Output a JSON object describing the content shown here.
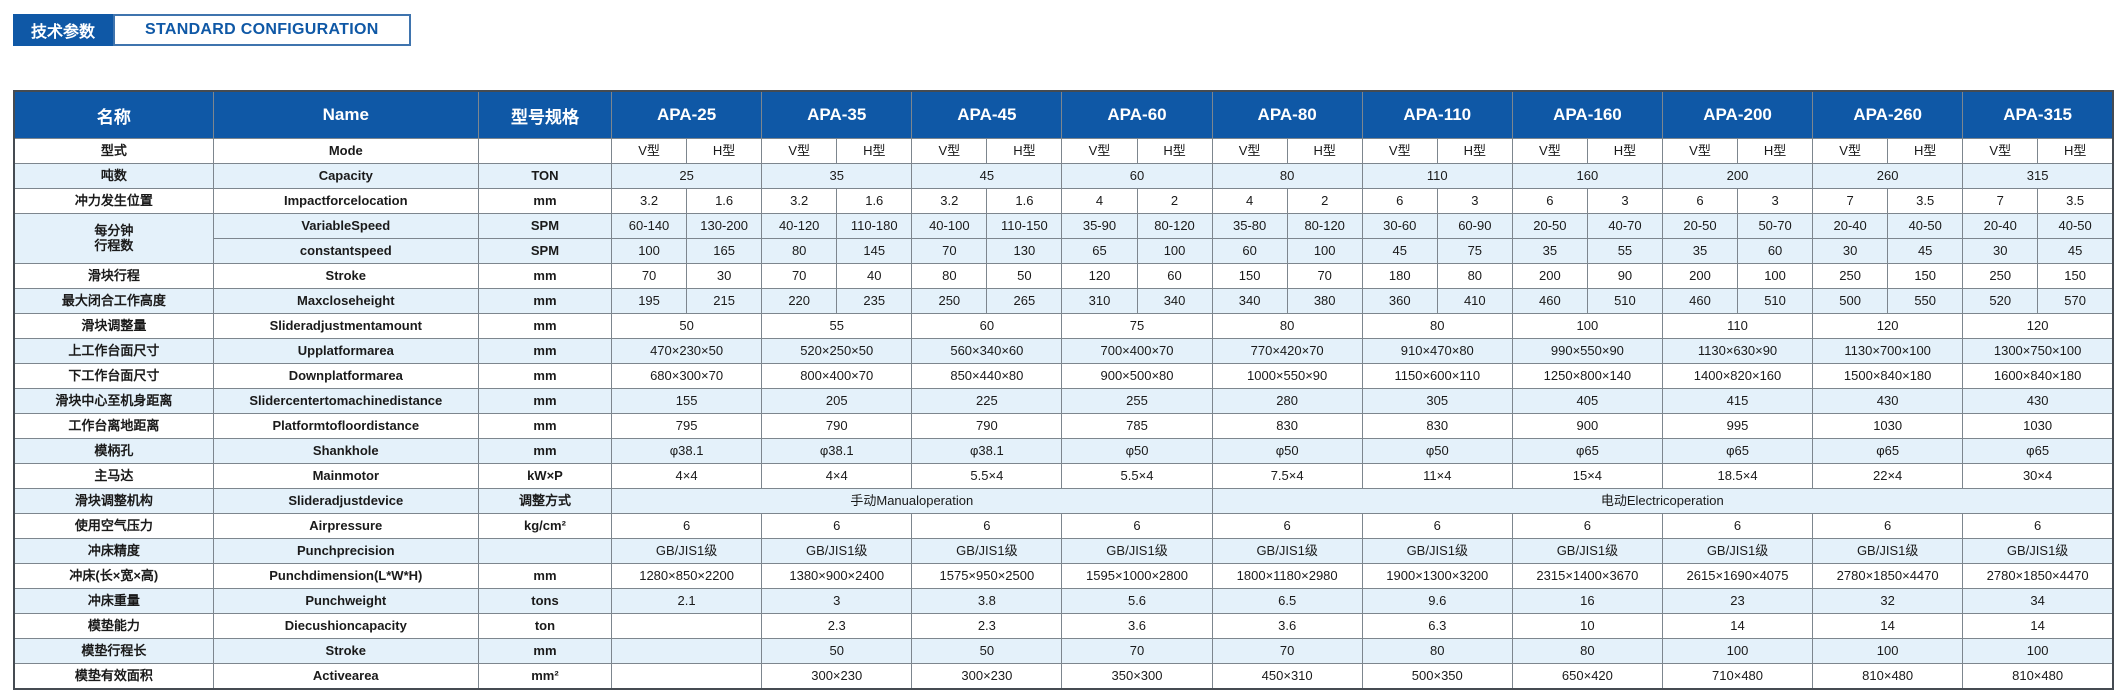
{
  "page": {
    "badge_cn": "技术参数",
    "badge_en": "STANDARD CONFIGURATION"
  },
  "colors": {
    "header_blue": "#0F58A6",
    "row_alt": "#E4F1FA",
    "border_gray": "#7D868E",
    "badge_text_blue": "#0F58A6"
  },
  "table": {
    "header": {
      "name_cn": "名称",
      "name_en": "Name",
      "spec": "型号规格",
      "models": [
        "APA-25",
        "APA-35",
        "APA-45",
        "APA-60",
        "APA-80",
        "APA-110",
        "APA-160",
        "APA-200",
        "APA-260",
        "APA-315"
      ]
    },
    "rows": [
      {
        "name_cn": "型式",
        "name_en": "Mode",
        "unit": "",
        "merged": false,
        "values": [
          "V型",
          "H型",
          "V型",
          "H型",
          "V型",
          "H型",
          "V型",
          "H型",
          "V型",
          "H型",
          "V型",
          "H型",
          "V型",
          "H型",
          "V型",
          "H型",
          "V型",
          "H型",
          "V型",
          "H型"
        ]
      },
      {
        "name_cn": "吨数",
        "name_en": "Capacity",
        "unit": "TON",
        "merged": true,
        "values": [
          "25",
          "35",
          "45",
          "60",
          "80",
          "110",
          "160",
          "200",
          "260",
          "315"
        ]
      },
      {
        "name_cn": "冲力发生位置",
        "name_en": "Impactforcelocation",
        "unit": "mm",
        "merged": false,
        "values": [
          "3.2",
          "1.6",
          "3.2",
          "1.6",
          "3.2",
          "1.6",
          "4",
          "2",
          "4",
          "2",
          "6",
          "3",
          "6",
          "3",
          "6",
          "3",
          "7",
          "3.5",
          "7",
          "3.5"
        ]
      },
      {
        "name_cn_lines": [
          "每分钟",
          "行程数"
        ],
        "sub_rows": [
          {
            "name_en": "VariableSpeed",
            "unit": "SPM",
            "merged": false,
            "values": [
              "60-140",
              "130-200",
              "40-120",
              "110-180",
              "40-100",
              "110-150",
              "35-90",
              "80-120",
              "35-80",
              "80-120",
              "30-60",
              "60-90",
              "20-50",
              "40-70",
              "20-50",
              "50-70",
              "20-40",
              "40-50",
              "20-40",
              "40-50"
            ]
          },
          {
            "name_en": "constantspeed",
            "unit": "SPM",
            "merged": false,
            "values": [
              "100",
              "165",
              "80",
              "145",
              "70",
              "130",
              "65",
              "100",
              "60",
              "100",
              "45",
              "75",
              "35",
              "55",
              "35",
              "60",
              "30",
              "45",
              "30",
              "45"
            ]
          }
        ]
      },
      {
        "name_cn": "滑块行程",
        "name_en": "Stroke",
        "unit": "mm",
        "merged": false,
        "values": [
          "70",
          "30",
          "70",
          "40",
          "80",
          "50",
          "120",
          "60",
          "150",
          "70",
          "180",
          "80",
          "200",
          "90",
          "200",
          "100",
          "250",
          "150",
          "250",
          "150"
        ]
      },
      {
        "name_cn": "最大闭合工作高度",
        "name_en": "Maxcloseheight",
        "unit": "mm",
        "merged": false,
        "values": [
          "195",
          "215",
          "220",
          "235",
          "250",
          "265",
          "310",
          "340",
          "340",
          "380",
          "360",
          "410",
          "460",
          "510",
          "460",
          "510",
          "500",
          "550",
          "520",
          "570"
        ]
      },
      {
        "name_cn": "滑块调整量",
        "name_en": "Slideradjustmentamount",
        "unit": "mm",
        "merged": true,
        "values": [
          "50",
          "55",
          "60",
          "75",
          "80",
          "80",
          "100",
          "110",
          "120",
          "120"
        ]
      },
      {
        "name_cn": "上工作台面尺寸",
        "name_en": "Upplatformarea",
        "unit": "mm",
        "merged": true,
        "values": [
          "470×230×50",
          "520×250×50",
          "560×340×60",
          "700×400×70",
          "770×420×70",
          "910×470×80",
          "990×550×90",
          "1130×630×90",
          "1130×700×100",
          "1300×750×100"
        ]
      },
      {
        "name_cn": "下工作台面尺寸",
        "name_en": "Downplatformarea",
        "unit": "mm",
        "merged": true,
        "values": [
          "680×300×70",
          "800×400×70",
          "850×440×80",
          "900×500×80",
          "1000×550×90",
          "1150×600×110",
          "1250×800×140",
          "1400×820×160",
          "1500×840×180",
          "1600×840×180"
        ]
      },
      {
        "name_cn": "滑块中心至机身距离",
        "name_en": "Slidercentertomachinedistance",
        "unit": "mm",
        "merged": true,
        "values": [
          "155",
          "205",
          "225",
          "255",
          "280",
          "305",
          "405",
          "415",
          "430",
          "430"
        ]
      },
      {
        "name_cn": "工作台离地距离",
        "name_en": "Platformtofloordistance",
        "unit": "mm",
        "merged": true,
        "values": [
          "795",
          "790",
          "790",
          "785",
          "830",
          "830",
          "900",
          "995",
          "1030",
          "1030"
        ]
      },
      {
        "name_cn": "模柄孔",
        "name_en": "Shankhole",
        "unit": "mm",
        "merged": true,
        "values": [
          "φ38.1",
          "φ38.1",
          "φ38.1",
          "φ50",
          "φ50",
          "φ50",
          "φ65",
          "φ65",
          "φ65",
          "φ65"
        ]
      },
      {
        "name_cn": "主马达",
        "name_en": "Mainmotor",
        "unit": "kW×P",
        "merged": true,
        "values": [
          "4×4",
          "4×4",
          "5.5×4",
          "5.5×4",
          "7.5×4",
          "11×4",
          "15×4",
          "18.5×4",
          "22×4",
          "30×4"
        ]
      },
      {
        "name_cn": "滑块调整机构",
        "name_en": "Slideradjustdevice",
        "unit": "调整方式",
        "spans": [
          {
            "text": "手动Manualoperation",
            "cols": 8
          },
          {
            "text": "电动Electricoperation",
            "cols": 12
          }
        ]
      },
      {
        "name_cn": "使用空气压力",
        "name_en": "Airpressure",
        "unit": "kg/cm²",
        "merged": true,
        "values": [
          "6",
          "6",
          "6",
          "6",
          "6",
          "6",
          "6",
          "6",
          "6",
          "6"
        ]
      },
      {
        "name_cn": "冲床精度",
        "name_en": "Punchprecision",
        "unit": "",
        "merged": true,
        "values": [
          "GB/JIS1级",
          "GB/JIS1级",
          "GB/JIS1级",
          "GB/JIS1级",
          "GB/JIS1级",
          "GB/JIS1级",
          "GB/JIS1级",
          "GB/JIS1级",
          "GB/JIS1级",
          "GB/JIS1级"
        ]
      },
      {
        "name_cn": "冲床(长×宽×高)",
        "name_en": "Punchdimension(L*W*H)",
        "unit": "mm",
        "merged": true,
        "values": [
          "1280×850×2200",
          "1380×900×2400",
          "1575×950×2500",
          "1595×1000×2800",
          "1800×1180×2980",
          "1900×1300×3200",
          "2315×1400×3670",
          "2615×1690×4075",
          "2780×1850×4470",
          "2780×1850×4470"
        ]
      },
      {
        "name_cn": "冲床重量",
        "name_en": "Punchweight",
        "unit": "tons",
        "merged": true,
        "values": [
          "2.1",
          "3",
          "3.8",
          "5.6",
          "6.5",
          "9.6",
          "16",
          "23",
          "32",
          "34"
        ]
      },
      {
        "name_cn": "模垫能力",
        "name_en": "Diecushioncapacity",
        "unit": "ton",
        "merged": true,
        "values": [
          "",
          "2.3",
          "2.3",
          "3.6",
          "3.6",
          "6.3",
          "10",
          "14",
          "14",
          "14"
        ]
      },
      {
        "name_cn": "模垫行程长",
        "name_en": "Stroke",
        "unit": "mm",
        "merged": true,
        "values": [
          "",
          "50",
          "50",
          "70",
          "70",
          "80",
          "80",
          "100",
          "100",
          "100"
        ]
      },
      {
        "name_cn": "模垫有效面积",
        "name_en": "Activearea",
        "unit": "mm²",
        "merged": true,
        "values": [
          "",
          "300×230",
          "300×230",
          "350×300",
          "450×310",
          "500×350",
          "650×420",
          "710×480",
          "810×480",
          "810×480"
        ]
      }
    ]
  }
}
